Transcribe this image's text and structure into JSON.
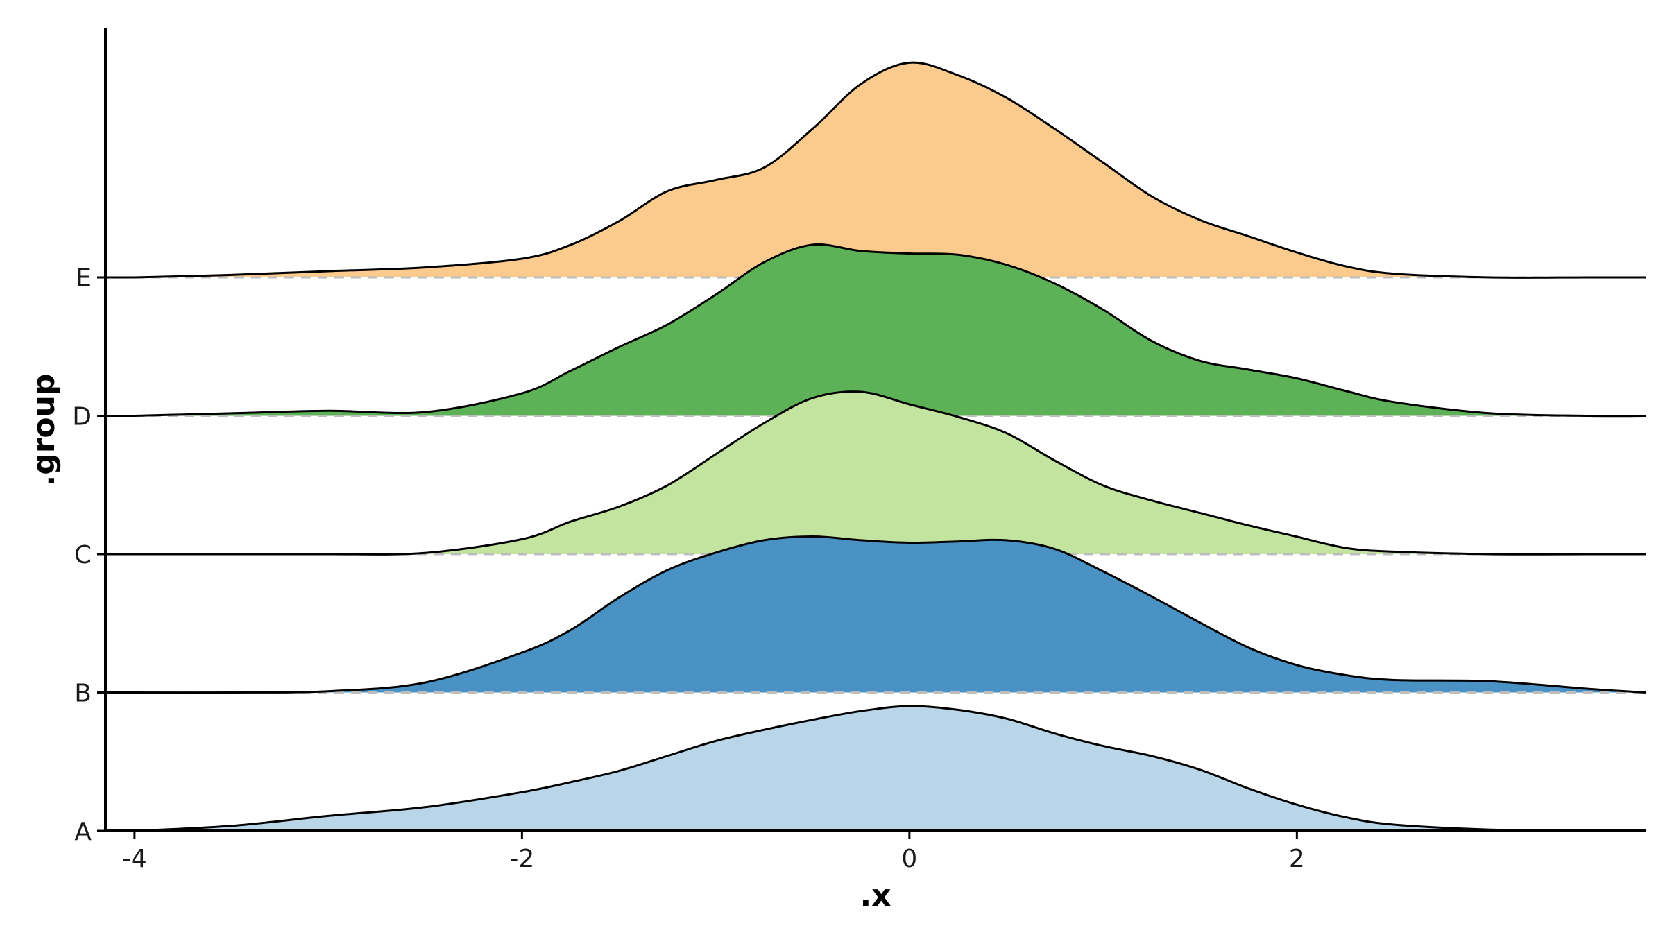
{
  "chart_data": {
    "type": "ridgeline density",
    "xlabel": ".x",
    "ylabel": ".group",
    "xlim": [
      -4.15,
      3.8
    ],
    "x_ticks": [
      -4,
      -2,
      0,
      2
    ],
    "x_tick_labels": [
      "-4",
      "-2",
      "0",
      "2"
    ],
    "categories": [
      "A",
      "B",
      "C",
      "D",
      "E"
    ],
    "grid": false,
    "legend": "none",
    "x": [
      -4.0,
      -3.5,
      -3.0,
      -2.5,
      -2.0,
      -1.75,
      -1.5,
      -1.25,
      -1.0,
      -0.75,
      -0.5,
      -0.25,
      0.0,
      0.25,
      0.5,
      0.75,
      1.0,
      1.25,
      1.5,
      1.75,
      2.0,
      2.25,
      2.5,
      3.0,
      3.5,
      3.8
    ],
    "series": [
      {
        "name": "A",
        "color": "#b8d6e8",
        "values": [
          0.0,
          0.04,
          0.12,
          0.19,
          0.31,
          0.39,
          0.48,
          0.6,
          0.72,
          0.81,
          0.89,
          0.96,
          1.0,
          0.97,
          0.9,
          0.78,
          0.68,
          0.6,
          0.49,
          0.34,
          0.21,
          0.11,
          0.05,
          0.01,
          0.0,
          0.0
        ]
      },
      {
        "name": "B",
        "color": "#4a92c4",
        "values": [
          0.0,
          0.0,
          0.01,
          0.08,
          0.32,
          0.5,
          0.76,
          0.98,
          1.12,
          1.22,
          1.25,
          1.22,
          1.2,
          1.21,
          1.22,
          1.15,
          0.97,
          0.77,
          0.56,
          0.36,
          0.22,
          0.14,
          0.1,
          0.09,
          0.03,
          0.0
        ]
      },
      {
        "name": "C",
        "color": "#c2e49f",
        "values": [
          0.0,
          0.0,
          0.0,
          0.01,
          0.12,
          0.26,
          0.38,
          0.55,
          0.8,
          1.05,
          1.25,
          1.3,
          1.2,
          1.1,
          0.97,
          0.75,
          0.55,
          0.43,
          0.33,
          0.23,
          0.14,
          0.05,
          0.02,
          0.0,
          0.0,
          0.0
        ]
      },
      {
        "name": "D",
        "color": "#5db257",
        "values": [
          0.0,
          0.02,
          0.04,
          0.03,
          0.18,
          0.36,
          0.55,
          0.73,
          0.97,
          1.23,
          1.37,
          1.32,
          1.3,
          1.29,
          1.21,
          1.06,
          0.85,
          0.6,
          0.44,
          0.37,
          0.3,
          0.2,
          0.11,
          0.02,
          0.0,
          0.0
        ]
      },
      {
        "name": "E",
        "color": "#fbcb8e",
        "values": [
          0.0,
          0.02,
          0.05,
          0.08,
          0.15,
          0.26,
          0.45,
          0.69,
          0.78,
          0.88,
          1.19,
          1.55,
          1.72,
          1.62,
          1.44,
          1.19,
          0.92,
          0.65,
          0.46,
          0.33,
          0.2,
          0.09,
          0.03,
          0.0,
          0.0,
          0.0
        ]
      }
    ]
  }
}
